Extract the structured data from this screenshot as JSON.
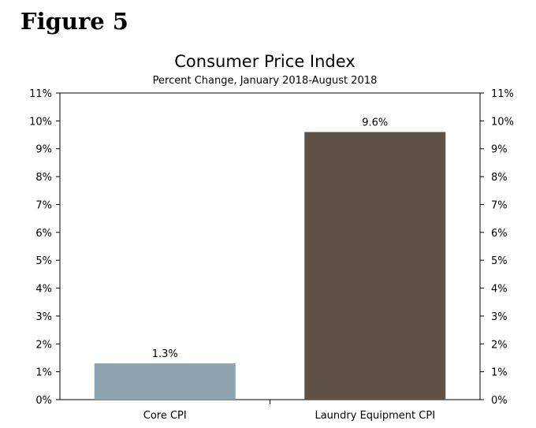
{
  "figure_label": "Figure 5",
  "colors": {
    "bar_core": "#8DA3B0",
    "bar_laundry": "#5E5246",
    "axis": "#000000"
  },
  "chart_data": {
    "type": "bar",
    "title": "Consumer Price Index",
    "subtitle": "Percent Change, January 2018-August 2018",
    "categories": [
      "Core CPI",
      "Laundry Equipment CPI"
    ],
    "values": [
      1.3,
      9.6
    ],
    "data_labels": [
      "1.3%",
      "9.6%"
    ],
    "ylim": [
      0,
      11
    ],
    "yticks": [
      "0%",
      "1%",
      "2%",
      "3%",
      "4%",
      "5%",
      "6%",
      "7%",
      "8%",
      "9%",
      "10%",
      "11%"
    ],
    "xlabel": "",
    "ylabel": "",
    "grid": false,
    "axes": "left-and-right"
  }
}
